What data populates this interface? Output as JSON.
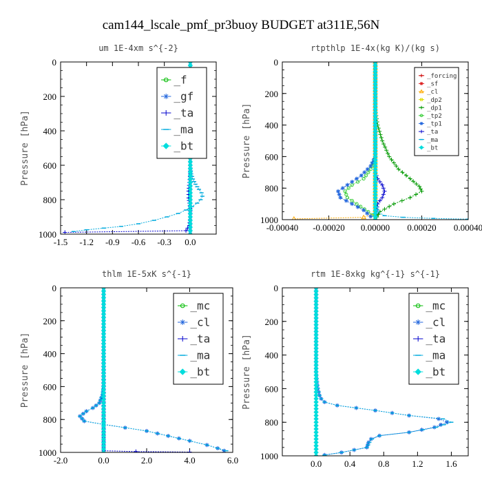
{
  "title": "cam144_lscale_pmf_pr3buoy  BUDGET at311E,56N",
  "chart_data": [
    {
      "type": "line",
      "title": "um  1E-4xm s^{-2}",
      "ylabel": "Pressure [hPa]",
      "xlim": [
        -1.5,
        0.3
      ],
      "ylim": [
        1000,
        0
      ],
      "xticks": [
        "-1.5",
        "-1.2",
        "-0.9",
        "-0.6",
        "-0.3",
        "0.0"
      ],
      "xtick_values": [
        -1.5,
        -1.2,
        -0.9,
        -0.6,
        -0.3,
        0.0
      ],
      "yticks": [
        "0",
        "200",
        "400",
        "600",
        "800",
        "1000"
      ],
      "ytick_values": [
        0,
        200,
        400,
        600,
        800,
        1000
      ],
      "legend": {
        "position": "top-right",
        "font_size": 16,
        "width": 72,
        "row_h": 24
      },
      "series": [
        {
          "name": "_f",
          "color": "#00bb00",
          "marker": "circle",
          "x": [
            0,
            0
          ],
          "y": [
            0,
            1000
          ]
        },
        {
          "name": "_gf",
          "color": "#2266dd",
          "marker": "star",
          "x": [
            0,
            0
          ],
          "y": [
            0,
            1000
          ]
        },
        {
          "name": "_ta",
          "color": "#0000cc",
          "marker": "plus",
          "x": [
            0,
            0,
            0,
            0,
            -0.01,
            -0.02,
            -0.02,
            -0.01,
            0,
            0,
            -0.01,
            -0.05,
            -1.45
          ],
          "y": [
            0,
            300,
            600,
            650,
            700,
            750,
            790,
            820,
            850,
            900,
            950,
            980,
            990
          ]
        },
        {
          "name": "_ma",
          "color": "#00aadd",
          "marker": "dash",
          "x": [
            0,
            0,
            0,
            0.01,
            0.03,
            0.06,
            0.1,
            0.13,
            0.14,
            0.12,
            0.08,
            0.02,
            -0.05,
            -0.14,
            -0.27,
            -0.42,
            -0.6,
            -0.8,
            -1.0,
            -1.2,
            -1.35
          ],
          "y": [
            0,
            300,
            600,
            650,
            680,
            710,
            740,
            760,
            780,
            800,
            820,
            840,
            860,
            880,
            900,
            920,
            940,
            955,
            965,
            975,
            985
          ]
        },
        {
          "name": "_bt",
          "color": "#00dddd",
          "marker": "diamond",
          "x": [
            0,
            0
          ],
          "y": [
            0,
            1000
          ]
        }
      ]
    },
    {
      "type": "line",
      "title": "rtpthlp  1E-4x(kg K)/(kg s)",
      "ylabel": "Pressure [hPa]",
      "xlim": [
        -0.0004,
        0.0004
      ],
      "ylim": [
        1000,
        0
      ],
      "xticks": [
        "-0.00040",
        "-0.00020",
        "0.00000",
        "0.00020",
        "0.00040"
      ],
      "xtick_values": [
        -0.0004,
        -0.0002,
        0.0,
        0.0002,
        0.0004
      ],
      "yticks": [
        "0",
        "200",
        "400",
        "600",
        "800",
        "1000"
      ],
      "ytick_values": [
        0,
        200,
        400,
        600,
        800,
        1000
      ],
      "legend": {
        "position": "top-right",
        "font_size": 9,
        "width": 64,
        "row_h": 11.6
      },
      "series": [
        {
          "name": "_forcing",
          "color": "#cc0000",
          "marker": "plus",
          "x": [
            0,
            0
          ],
          "y": [
            0,
            1000
          ]
        },
        {
          "name": "_sf",
          "color": "#dd2222",
          "marker": "star",
          "x": [
            0,
            0
          ],
          "y": [
            0,
            1000
          ]
        },
        {
          "name": "_cl",
          "color": "#ffaa00",
          "marker": "triangle",
          "x": [
            0,
            0,
            0,
            -5e-05,
            -0.00035
          ],
          "y": [
            0,
            900,
            960,
            985,
            995
          ]
        },
        {
          "name": "_dp2",
          "color": "#dddd00",
          "marker": "square",
          "x": [
            0,
            0
          ],
          "y": [
            0,
            1000
          ]
        },
        {
          "name": "_dp1",
          "color": "#009900",
          "marker": "plus",
          "x": [
            0,
            0,
            1e-05,
            3e-05,
            6e-05,
            0.0001,
            0.00015,
            0.00019,
            0.0002,
            0.00015,
            8e-05,
            2e-05,
            0
          ],
          "y": [
            0,
            300,
            400,
            500,
            600,
            680,
            740,
            790,
            820,
            860,
            900,
            950,
            1000
          ]
        },
        {
          "name": "_tp2",
          "color": "#33cc33",
          "marker": "circle",
          "x": [
            0,
            0,
            -2e-05,
            -5e-05,
            -0.0001,
            -0.00013,
            -0.00012,
            -8e-05,
            -3e-05,
            0
          ],
          "y": [
            0,
            600,
            680,
            740,
            780,
            820,
            860,
            900,
            950,
            990
          ]
        },
        {
          "name": "_tp1",
          "color": "#2266dd",
          "marker": "star",
          "x": [
            0,
            0,
            -2e-05,
            -6e-05,
            -0.00012,
            -0.00016,
            -0.00015,
            -0.0001,
            -5e-05,
            -2e-05
          ],
          "y": [
            0,
            600,
            660,
            720,
            780,
            820,
            860,
            900,
            940,
            980
          ]
        },
        {
          "name": "_ta",
          "color": "#0000cc",
          "marker": "plus",
          "x": [
            0,
            0,
            1e-05,
            3e-05,
            4e-05,
            3e-05,
            1e-05,
            0
          ],
          "y": [
            0,
            700,
            740,
            780,
            820,
            860,
            900,
            1000
          ]
        },
        {
          "name": "_ma",
          "color": "#00aadd",
          "marker": "dash",
          "x": [
            0,
            0,
            1e-05,
            4e-05,
            0.00012,
            0.00025,
            0.0004
          ],
          "y": [
            0,
            900,
            950,
            975,
            985,
            992,
            997
          ]
        },
        {
          "name": "_bt",
          "color": "#00dddd",
          "marker": "diamond",
          "x": [
            0,
            0
          ],
          "y": [
            0,
            1000
          ]
        }
      ]
    },
    {
      "type": "line",
      "title": "thlm  1E-5xK s^{-1}",
      "ylabel": "Pressure [hPa]",
      "xlim": [
        -2.0,
        6.0
      ],
      "ylim": [
        1000,
        0
      ],
      "xticks": [
        "-2.0",
        "0.0",
        "2.0",
        "4.0",
        "6.0"
      ],
      "xtick_values": [
        -2.0,
        0.0,
        2.0,
        4.0,
        6.0
      ],
      "yticks": [
        "0",
        "200",
        "400",
        "600",
        "800",
        "1000"
      ],
      "ytick_values": [
        0,
        200,
        400,
        600,
        800,
        1000
      ],
      "legend": {
        "position": "top-right",
        "font_size": 16,
        "width": 72,
        "row_h": 24
      },
      "series": [
        {
          "name": "_mc",
          "color": "#00bb00",
          "marker": "circle",
          "x": [
            0,
            0
          ],
          "y": [
            0,
            1000
          ]
        },
        {
          "name": "_cl",
          "color": "#2266dd",
          "marker": "star",
          "x": [
            0,
            0,
            -0.05,
            -0.2,
            -0.5,
            -0.8,
            -1.1,
            -0.9,
            0,
            1.0,
            2.0,
            3.0,
            4.0,
            4.8,
            5.3,
            5.6
          ],
          "y": [
            0,
            600,
            650,
            700,
            730,
            750,
            780,
            810,
            830,
            850,
            870,
            900,
            930,
            955,
            975,
            990
          ]
        },
        {
          "name": "_ta",
          "color": "#0000cc",
          "marker": "plus",
          "x": [
            0,
            0,
            1.5,
            4.0
          ],
          "y": [
            0,
            990,
            995,
            998
          ]
        },
        {
          "name": "_ma",
          "color": "#00aadd",
          "marker": "dash",
          "x": [
            0,
            0,
            -0.05,
            -0.2,
            -0.5,
            -0.8,
            -1.1,
            -0.9,
            0,
            1.0,
            2.0,
            3.0,
            4.0,
            4.8,
            5.3,
            5.7
          ],
          "y": [
            0,
            600,
            650,
            700,
            730,
            750,
            780,
            810,
            830,
            850,
            870,
            900,
            930,
            955,
            975,
            990
          ]
        },
        {
          "name": "_bt",
          "color": "#00dddd",
          "marker": "diamond",
          "x": [
            0,
            0
          ],
          "y": [
            0,
            1000
          ]
        }
      ]
    },
    {
      "type": "line",
      "title": "rtm  1E-8xkg kg^{-1} s^{-1}",
      "ylabel": "Pressure [hPa]",
      "xlim": [
        -0.4,
        1.8
      ],
      "ylim": [
        1000,
        0
      ],
      "xticks": [
        "0.0",
        "0.4",
        "0.8",
        "1.2",
        "1.6"
      ],
      "xtick_values": [
        0.0,
        0.4,
        0.8,
        1.2,
        1.6
      ],
      "yticks": [
        "0",
        "200",
        "400",
        "600",
        "800",
        "1000"
      ],
      "ytick_values": [
        0,
        200,
        400,
        600,
        800,
        1000
      ],
      "legend": {
        "position": "top-right",
        "font_size": 16,
        "width": 72,
        "row_h": 24
      },
      "series": [
        {
          "name": "_mc",
          "color": "#00bb00",
          "marker": "circle",
          "x": [
            0,
            0
          ],
          "y": [
            0,
            1000
          ]
        },
        {
          "name": "_cl",
          "color": "#2266dd",
          "marker": "star",
          "x": [
            0,
            0,
            0.01,
            0.02,
            0.04,
            0.06,
            0.1,
            0.25,
            0.7,
            1.1,
            1.45,
            1.55,
            1.4,
            1.1,
            0.75,
            0.65,
            0.62,
            0.6,
            0.3,
            0.1
          ],
          "y": [
            0,
            500,
            560,
            600,
            640,
            660,
            680,
            700,
            730,
            760,
            780,
            800,
            830,
            860,
            880,
            900,
            920,
            950,
            980,
            995
          ]
        },
        {
          "name": "_ta",
          "color": "#0000cc",
          "marker": "plus",
          "x": [
            0,
            0
          ],
          "y": [
            0,
            1000
          ]
        },
        {
          "name": "_ma",
          "color": "#00aadd",
          "marker": "dash",
          "x": [
            0,
            0,
            0.01,
            0.02,
            0.04,
            0.06,
            0.1,
            0.25,
            0.7,
            1.1,
            1.5,
            1.6,
            1.42,
            1.1,
            0.75,
            0.66,
            0.63,
            0.6,
            0.3,
            0.1
          ],
          "y": [
            0,
            500,
            560,
            600,
            640,
            660,
            680,
            700,
            730,
            760,
            780,
            800,
            830,
            860,
            880,
            900,
            920,
            950,
            980,
            995
          ]
        },
        {
          "name": "_bt",
          "color": "#00dddd",
          "marker": "diamond",
          "x": [
            0,
            0
          ],
          "y": [
            0,
            1000
          ]
        }
      ]
    }
  ]
}
